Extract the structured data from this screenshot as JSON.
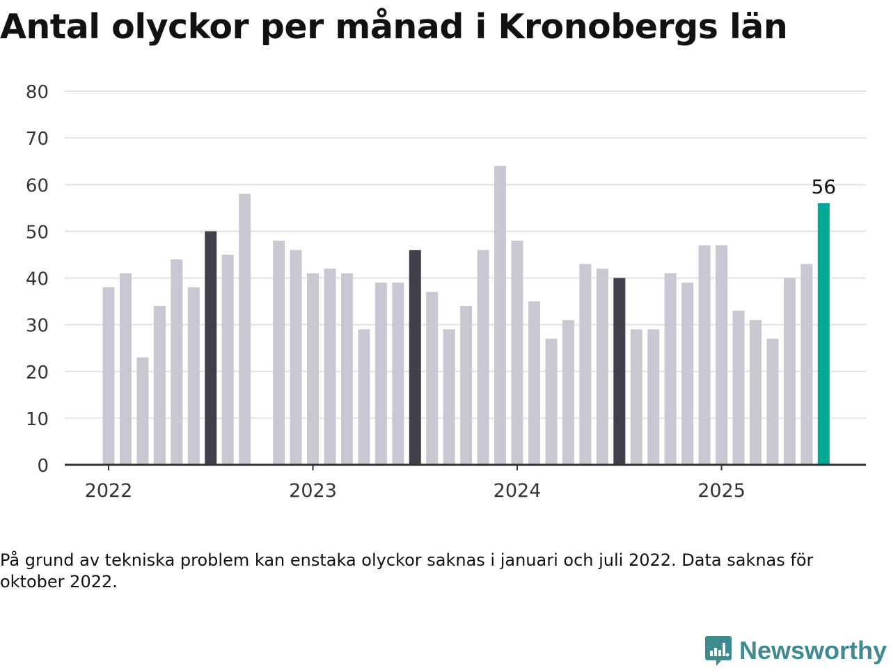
{
  "chart_data": {
    "type": "bar",
    "title": "Antal olyckor per månad i Kronobergs län",
    "ylim": [
      0,
      80
    ],
    "yticks": [
      "0",
      "10",
      "20",
      "30",
      "40",
      "50",
      "60",
      "70",
      "80"
    ],
    "xtick_labels": [
      "2022",
      "2023",
      "2024",
      "2025"
    ],
    "grid": true,
    "categories": [
      "2022-01",
      "2022-02",
      "2022-03",
      "2022-04",
      "2022-05",
      "2022-06",
      "2022-07",
      "2022-08",
      "2022-09",
      "2022-10",
      "2022-11",
      "2022-12",
      "2023-01",
      "2023-02",
      "2023-03",
      "2023-04",
      "2023-05",
      "2023-06",
      "2023-07",
      "2023-08",
      "2023-09",
      "2023-10",
      "2023-11",
      "2023-12",
      "2024-01",
      "2024-02",
      "2024-03",
      "2024-04",
      "2024-05",
      "2024-06",
      "2024-07",
      "2024-08",
      "2024-09",
      "2024-10",
      "2024-11",
      "2024-12",
      "2025-01",
      "2025-02",
      "2025-03",
      "2025-04",
      "2025-05",
      "2025-06",
      "2025-07"
    ],
    "values": [
      38,
      41,
      23,
      34,
      44,
      38,
      50,
      45,
      58,
      null,
      48,
      46,
      41,
      42,
      41,
      29,
      39,
      39,
      46,
      37,
      29,
      34,
      46,
      64,
      48,
      35,
      27,
      31,
      43,
      42,
      40,
      29,
      29,
      41,
      39,
      47,
      47,
      33,
      31,
      27,
      40,
      43,
      56
    ],
    "highlighted_month": 7,
    "highlight_label": "56",
    "colors": {
      "default": "#c8c8d2",
      "same_month_prior_years": "#40404d",
      "latest": "#00a896",
      "grid": "#e2e2e2",
      "axis": "#333333"
    }
  },
  "footnote": "På grund av tekniska problem kan enstaka olyckor saknas i januari och juli 2022. Data saknas för oktober 2022.",
  "logo": {
    "text": "Newsworthy",
    "icon": "newsworthy-chat-bubble-icon",
    "color": "#3f8a8e"
  }
}
